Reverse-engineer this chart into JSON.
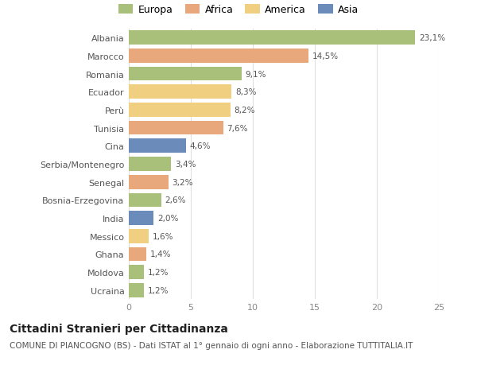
{
  "categories": [
    "Albania",
    "Marocco",
    "Romania",
    "Ecuador",
    "Perù",
    "Tunisia",
    "Cina",
    "Serbia/Montenegro",
    "Senegal",
    "Bosnia-Erzegovina",
    "India",
    "Messico",
    "Ghana",
    "Moldova",
    "Ucraina"
  ],
  "values": [
    23.1,
    14.5,
    9.1,
    8.3,
    8.2,
    7.6,
    4.6,
    3.4,
    3.2,
    2.6,
    2.0,
    1.6,
    1.4,
    1.2,
    1.2
  ],
  "labels": [
    "23,1%",
    "14,5%",
    "9,1%",
    "8,3%",
    "8,2%",
    "7,6%",
    "4,6%",
    "3,4%",
    "3,2%",
    "2,6%",
    "2,0%",
    "1,6%",
    "1,4%",
    "1,2%",
    "1,2%"
  ],
  "continents": [
    "Europa",
    "Africa",
    "Europa",
    "America",
    "America",
    "Africa",
    "Asia",
    "Europa",
    "Africa",
    "Europa",
    "Asia",
    "America",
    "Africa",
    "Europa",
    "Europa"
  ],
  "colors": {
    "Europa": "#a8c07a",
    "Africa": "#e8a87c",
    "America": "#f0d080",
    "Asia": "#6b8cba"
  },
  "legend_items": [
    "Europa",
    "Africa",
    "America",
    "Asia"
  ],
  "legend_colors": [
    "#a8c07a",
    "#e8a87c",
    "#f0d080",
    "#6b8cba"
  ],
  "title": "Cittadini Stranieri per Cittadinanza",
  "subtitle": "COMUNE DI PIANCOGNO (BS) - Dati ISTAT al 1° gennaio di ogni anno - Elaborazione TUTTITALIA.IT",
  "xlim": [
    0,
    25
  ],
  "xticks": [
    0,
    5,
    10,
    15,
    20,
    25
  ],
  "background_color": "#ffffff",
  "grid_color": "#e0e0e0",
  "bar_height": 0.78,
  "title_fontsize": 10,
  "subtitle_fontsize": 7.5,
  "label_fontsize": 7.5,
  "tick_fontsize": 8,
  "legend_fontsize": 9
}
